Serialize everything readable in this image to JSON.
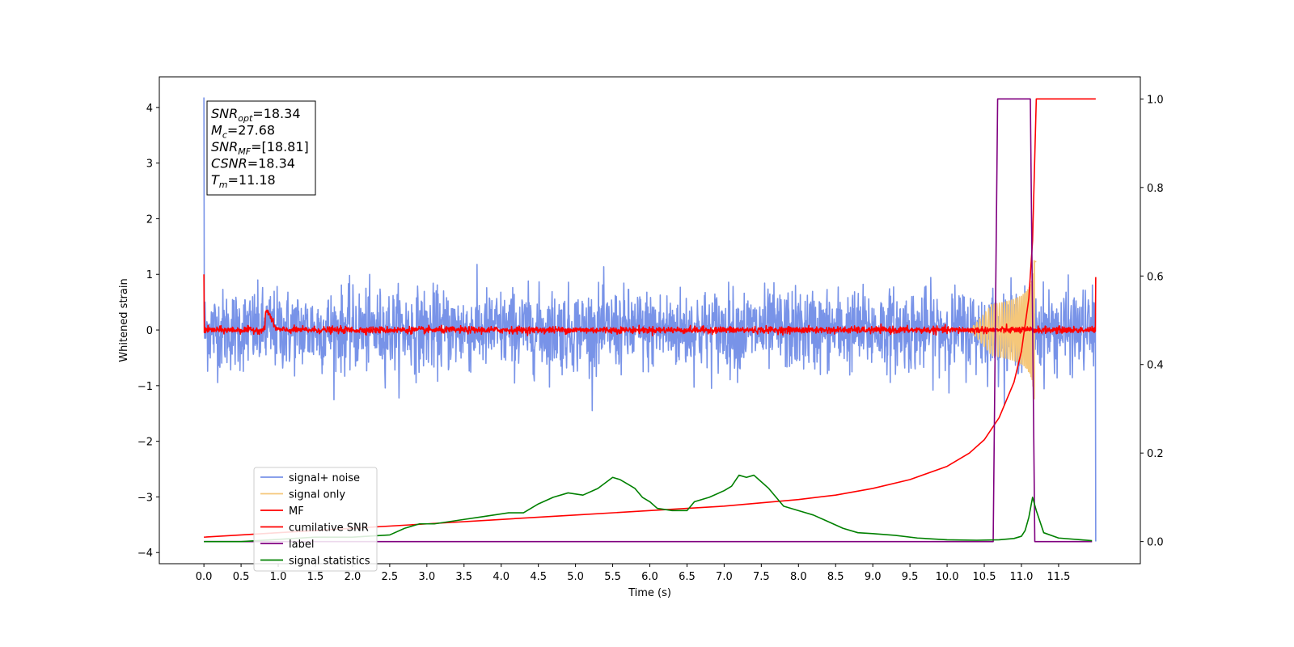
{
  "chart_data": {
    "type": "line",
    "title": "",
    "xlabel": "Time (s)",
    "ylabel": "Whitened strain",
    "y2label": "",
    "xlim": [
      -0.6,
      12.6
    ],
    "ylim": [
      -4.2,
      4.55
    ],
    "y2lim": [
      -0.05,
      1.05
    ],
    "x_ticks": [
      0.0,
      0.5,
      1.0,
      1.5,
      2.0,
      2.5,
      3.0,
      3.5,
      4.0,
      4.5,
      5.0,
      5.5,
      6.0,
      6.5,
      7.0,
      7.5,
      8.0,
      8.5,
      9.0,
      9.5,
      10.0,
      10.5,
      11.0,
      11.5
    ],
    "x_tick_labels": [
      "0.0",
      "0.5",
      "1.0",
      "1.5",
      "2.0",
      "2.5",
      "3.0",
      "3.5",
      "4.0",
      "4.5",
      "5.0",
      "5.5",
      "6.0",
      "6.5",
      "7.0",
      "7.5",
      "8.0",
      "8.5",
      "9.0",
      "9.5",
      "10.0",
      "10.5",
      "11.0",
      "11.5"
    ],
    "y_ticks": [
      4,
      3,
      2,
      1,
      0,
      -1,
      -2,
      -3,
      -4
    ],
    "y_tick_labels": [
      "4",
      "3",
      "2",
      "1",
      "0",
      "−1",
      "−2",
      "−3",
      "−4"
    ],
    "y2_ticks": [
      1.0,
      0.8,
      0.6,
      0.4,
      0.2,
      0.0
    ],
    "y2_tick_labels": [
      "1.0",
      "0.8",
      "0.6",
      "0.4",
      "0.2",
      "0.0"
    ],
    "grid": false,
    "legend_position": "lower-left",
    "legend": [
      {
        "label": "signal+ noise",
        "color": "#7893e8"
      },
      {
        "label": "signal only",
        "color": "#f5c77a"
      },
      {
        "label": "MF",
        "color": "#ff0000"
      },
      {
        "label": "cumilative SNR",
        "color": "#ff0000"
      },
      {
        "label": "label",
        "color": "#800080"
      },
      {
        "label": "signal statistics",
        "color": "#008000"
      }
    ],
    "annotation": {
      "lines": [
        {
          "base": "SNR",
          "sub": "opt",
          "value": "=18.34"
        },
        {
          "base": "M",
          "sub": "c",
          "value": "=27.68"
        },
        {
          "base": "SNR",
          "sub": "MF",
          "value": "=[18.81]"
        },
        {
          "base": "CSNR",
          "sub": "",
          "value": "=18.34"
        },
        {
          "base": "T",
          "sub": "m",
          "value": "=11.18"
        }
      ]
    },
    "series": [
      {
        "name": "signal+ noise",
        "axis": "left",
        "color": "#7893e8",
        "kind": "noise",
        "x_range": [
          0.0,
          12.0
        ],
        "std": 0.36,
        "spike_at_start": 4.18,
        "end_value": -3.8,
        "samples": 2400
      },
      {
        "name": "signal only",
        "axis": "left",
        "color": "#f5c77a",
        "kind": "chirp",
        "x_range": [
          10.3,
          11.2
        ],
        "peak_time": 11.18,
        "peak_amplitude": 1.6
      },
      {
        "name": "MF",
        "axis": "left",
        "color": "#ff0000",
        "kind": "noise",
        "x_range": [
          0.0,
          12.0
        ],
        "std": 0.03,
        "start_value": 1.0,
        "end_value": 0.95,
        "bump_at": 0.85,
        "bump_height": 0.33,
        "samples": 2400
      },
      {
        "name": "cumilative SNR",
        "axis": "right",
        "color": "#ff0000",
        "x": [
          0.0,
          0.5,
          1.0,
          2.0,
          3.0,
          4.0,
          5.0,
          6.0,
          7.0,
          8.0,
          8.5,
          9.0,
          9.5,
          10.0,
          10.3,
          10.5,
          10.7,
          10.9,
          11.0,
          11.1,
          11.15,
          11.2,
          11.3,
          11.5,
          11.8,
          12.0
        ],
        "y": [
          0.01,
          0.015,
          0.02,
          0.03,
          0.04,
          0.05,
          0.06,
          0.07,
          0.08,
          0.095,
          0.105,
          0.12,
          0.14,
          0.17,
          0.2,
          0.23,
          0.28,
          0.36,
          0.43,
          0.55,
          0.68,
          1.0,
          1.0,
          1.0,
          1.0,
          1.0
        ]
      },
      {
        "name": "label",
        "axis": "right",
        "color": "#800080",
        "x": [
          0.0,
          10.62,
          10.68,
          11.12,
          11.18,
          11.95
        ],
        "y": [
          0.0,
          0.0,
          1.0,
          1.0,
          0.0,
          0.0
        ]
      },
      {
        "name": "signal statistics",
        "axis": "right",
        "color": "#008000",
        "x": [
          0.0,
          0.5,
          1.0,
          1.5,
          2.0,
          2.5,
          2.7,
          2.9,
          3.1,
          3.3,
          3.5,
          3.7,
          3.9,
          4.1,
          4.3,
          4.5,
          4.7,
          4.9,
          5.1,
          5.3,
          5.5,
          5.6,
          5.7,
          5.8,
          5.9,
          6.0,
          6.1,
          6.3,
          6.5,
          6.6,
          6.8,
          7.0,
          7.1,
          7.2,
          7.3,
          7.4,
          7.5,
          7.6,
          7.8,
          8.0,
          8.2,
          8.4,
          8.6,
          8.8,
          9.0,
          9.3,
          9.6,
          10.0,
          10.4,
          10.7,
          10.9,
          11.0,
          11.05,
          11.1,
          11.15,
          11.2,
          11.3,
          11.5,
          11.8,
          11.95
        ],
        "y": [
          0.0,
          0.0,
          0.005,
          0.01,
          0.01,
          0.015,
          0.03,
          0.04,
          0.04,
          0.045,
          0.05,
          0.055,
          0.06,
          0.065,
          0.065,
          0.085,
          0.1,
          0.11,
          0.105,
          0.12,
          0.145,
          0.14,
          0.13,
          0.12,
          0.1,
          0.09,
          0.075,
          0.07,
          0.07,
          0.09,
          0.1,
          0.115,
          0.125,
          0.15,
          0.145,
          0.15,
          0.135,
          0.12,
          0.08,
          0.07,
          0.06,
          0.045,
          0.03,
          0.02,
          0.018,
          0.014,
          0.008,
          0.004,
          0.003,
          0.004,
          0.007,
          0.012,
          0.025,
          0.055,
          0.1,
          0.07,
          0.02,
          0.008,
          0.004,
          0.002
        ]
      }
    ]
  }
}
